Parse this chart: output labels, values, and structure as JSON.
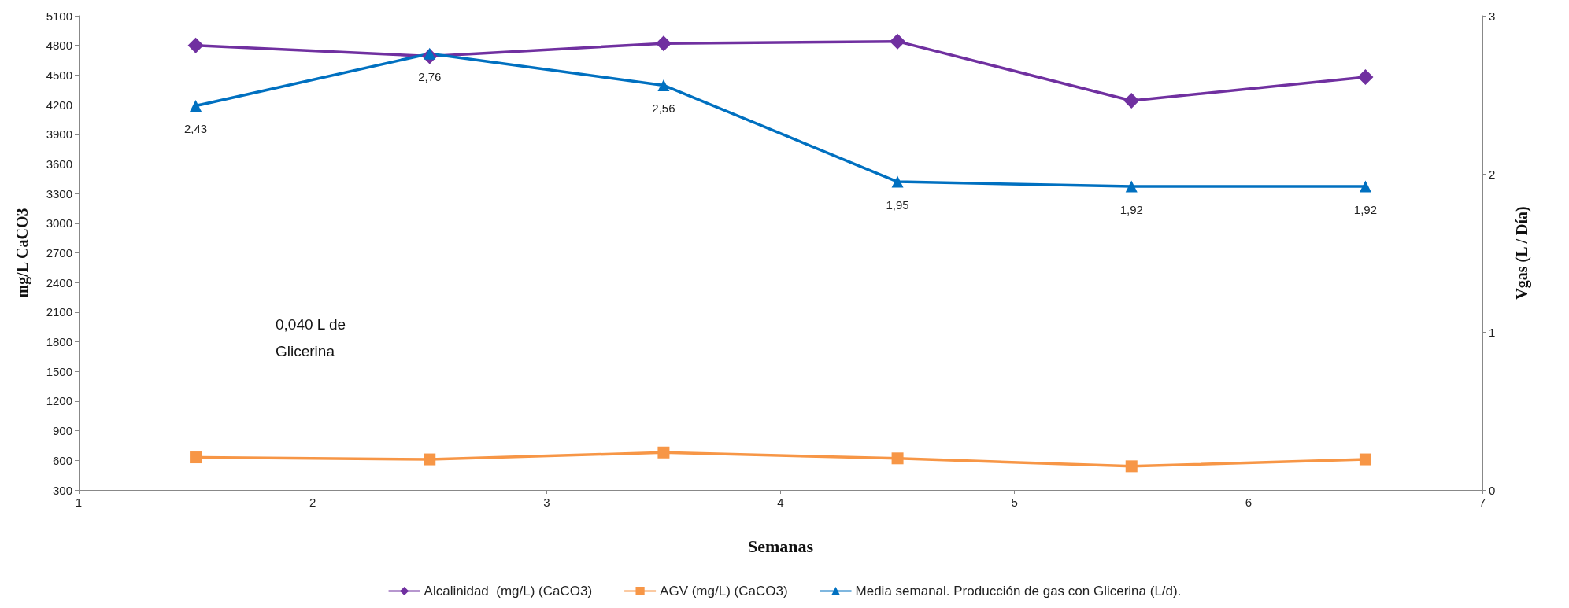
{
  "chart_data": {
    "type": "line",
    "xlabel": "Semanas",
    "ylabel": "mg/L CaCO3",
    "y2label": "Vgas (L / Día)",
    "x": [
      1.5,
      2.5,
      3.5,
      4.5,
      5.5,
      6.5
    ],
    "xlim": [
      1,
      7
    ],
    "xticks": [
      1,
      2,
      3,
      4,
      5,
      6,
      7
    ],
    "ylim": [
      300,
      5100
    ],
    "yticks": [
      300,
      600,
      900,
      1200,
      1500,
      1800,
      2100,
      2400,
      2700,
      3000,
      3300,
      3600,
      3900,
      4200,
      4500,
      4800,
      5100
    ],
    "y2lim": [
      0,
      3
    ],
    "y2ticks": [
      0,
      1,
      2,
      3
    ],
    "series": [
      {
        "name": "Alcalinidad  (mg/L) (CaCO3)",
        "color": "#7030a0",
        "marker": "diamond",
        "values": [
          4800,
          4690,
          4820,
          4840,
          4240,
          4480
        ]
      },
      {
        "name": "AGV (mg/L) (CaCO3)",
        "color": "#f79646",
        "marker": "square",
        "values": [
          630,
          610,
          680,
          620,
          540,
          610
        ]
      },
      {
        "name": "Media semanal. Producción de gas con Glicerina (L/d).",
        "color": "#0070c0",
        "marker": "triangle",
        "axis": "y2",
        "values": [
          2.43,
          2.76,
          2.56,
          1.95,
          1.92,
          1.92
        ],
        "value_labels": [
          "2,43",
          "2,76",
          "2,56",
          "1,95",
          "1,92",
          "1,92"
        ]
      }
    ],
    "annotations": [
      "0,040 L de\nGlicerina"
    ],
    "grid": false,
    "legend": "bottom",
    "line_style": "solid"
  }
}
